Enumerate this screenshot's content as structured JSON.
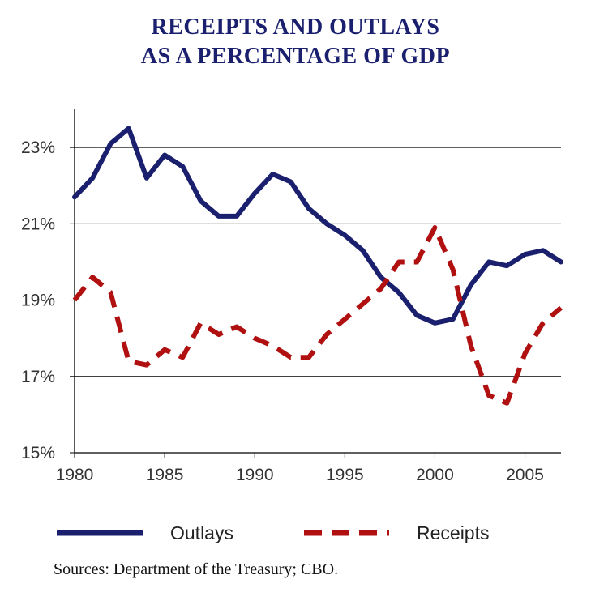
{
  "chart_data": {
    "type": "line",
    "title": "RECEIPTS AND OUTLAYS",
    "subtitle": "AS A PERCENTAGE OF GDP",
    "x": [
      1980,
      1981,
      1982,
      1983,
      1984,
      1985,
      1986,
      1987,
      1988,
      1989,
      1990,
      1991,
      1992,
      1993,
      1994,
      1995,
      1996,
      1997,
      1998,
      1999,
      2000,
      2001,
      2002,
      2003,
      2004,
      2005,
      2006,
      2007
    ],
    "series": [
      {
        "name": "Outlays",
        "color": "#1a1f6e",
        "style": "solid",
        "values": [
          21.7,
          22.2,
          23.1,
          23.5,
          22.2,
          22.8,
          22.5,
          21.6,
          21.2,
          21.2,
          21.8,
          22.3,
          22.1,
          21.4,
          21.0,
          20.7,
          20.3,
          19.6,
          19.2,
          18.6,
          18.4,
          18.5,
          19.4,
          20.0,
          19.9,
          20.2,
          20.3,
          20.0
        ]
      },
      {
        "name": "Receipts",
        "color": "#b01010",
        "style": "dashed",
        "values": [
          19.0,
          19.6,
          19.2,
          17.4,
          17.3,
          17.7,
          17.5,
          18.4,
          18.1,
          18.3,
          18.0,
          17.8,
          17.5,
          17.5,
          18.1,
          18.5,
          18.9,
          19.3,
          20.0,
          20.0,
          20.9,
          19.8,
          17.8,
          16.5,
          16.3,
          17.6,
          18.4,
          18.8
        ]
      }
    ],
    "y_ticks": [
      "15%",
      "17%",
      "19%",
      "21%",
      "23%"
    ],
    "y_tick_values": [
      15,
      17,
      19,
      21,
      23
    ],
    "x_ticks": [
      "1980",
      "1985",
      "1990",
      "1995",
      "2000",
      "2005"
    ],
    "x_tick_values": [
      1980,
      1985,
      1990,
      1995,
      2000,
      2005
    ],
    "xlim": [
      1980,
      2007
    ],
    "ylim": [
      15,
      24
    ],
    "grid": "horizontal",
    "legend_position": "bottom"
  },
  "source": "Sources:  Department of the Treasury; CBO."
}
